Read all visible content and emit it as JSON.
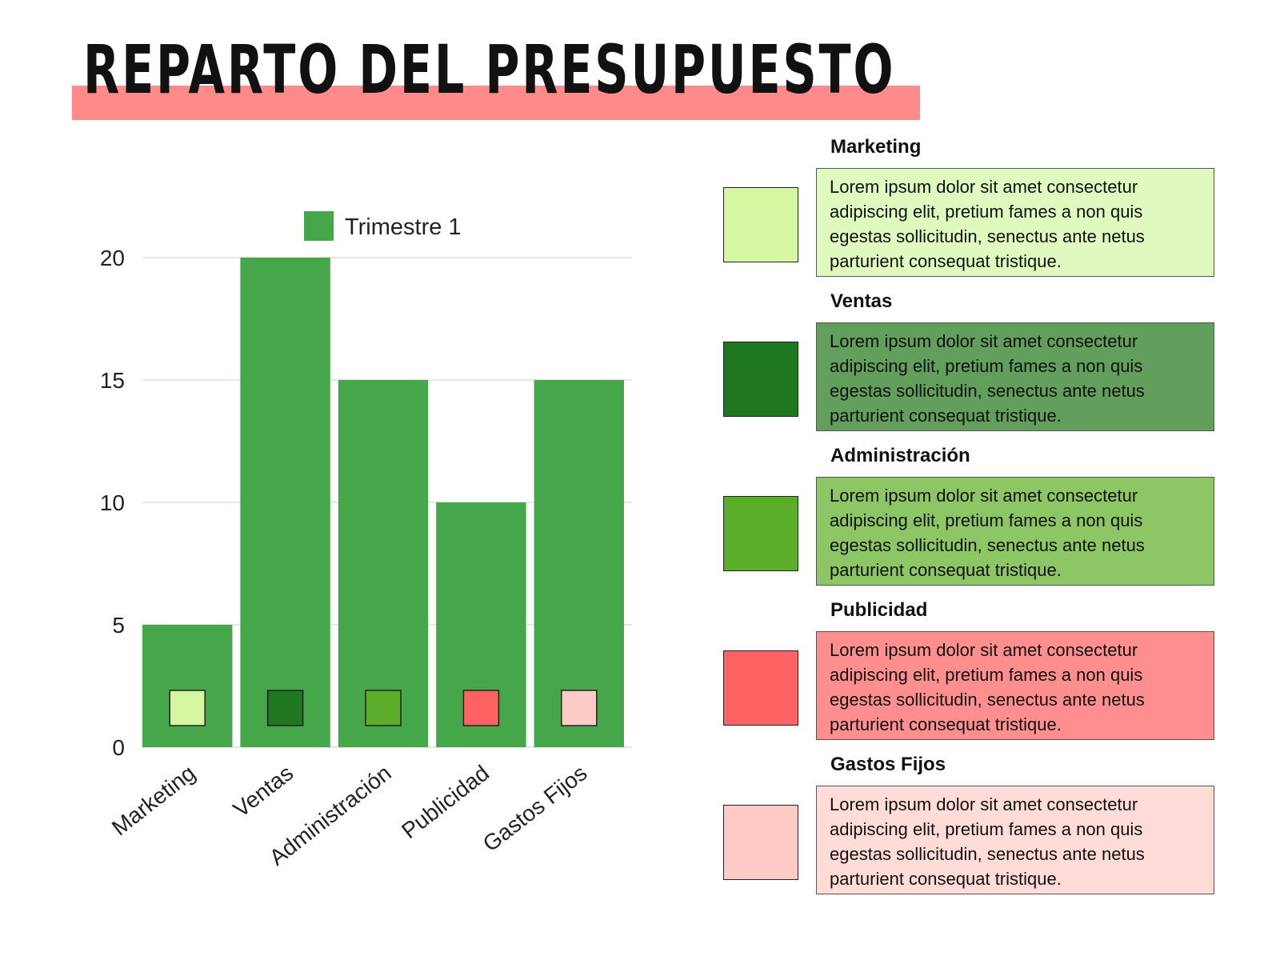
{
  "title": "REPARTO DEL PRESUPUESTO",
  "colors": {
    "title_band": "#ff8a8a",
    "bar": "#46a64a",
    "grid": "#dddddd"
  },
  "chart_data": {
    "type": "bar",
    "categories": [
      "Marketing",
      "Ventas",
      "Administración",
      "Publicidad",
      "Gastos Fijos"
    ],
    "series": [
      {
        "name": "Trimestre 1",
        "values": [
          5,
          20,
          15,
          10,
          15
        ]
      }
    ],
    "marker_colors": [
      "#d4f7a0",
      "#1f7720",
      "#5aae2a",
      "#ff6262",
      "#ffcbc6"
    ],
    "yticks": [
      0,
      5,
      10,
      15,
      20
    ],
    "ylim": [
      0,
      20
    ],
    "grid": true,
    "legend_position": "top"
  },
  "legend": [
    {
      "title": "Marketing",
      "text": "Lorem ipsum dolor sit amet consectetur adipiscing elit, pretium fames a non quis egestas sollicitudin, senectus ante netus parturient consequat tristique.",
      "swatch_color": "#d4f7a0",
      "box_color": "#dff9bf"
    },
    {
      "title": "Ventas",
      "text": "Lorem ipsum dolor sit amet consectetur adipiscing elit, pretium fames a non quis egestas sollicitudin, senectus ante netus parturient consequat tristique.",
      "swatch_color": "#1f7720",
      "box_color": "#629e5c"
    },
    {
      "title": "Administración",
      "text": "Lorem ipsum dolor sit amet consectetur adipiscing elit, pretium fames a non quis egestas sollicitudin, senectus ante netus parturient consequat tristique.",
      "swatch_color": "#5aae2a",
      "box_color": "#8cc665"
    },
    {
      "title": "Publicidad",
      "text": "Lorem ipsum dolor sit amet consectetur adipiscing elit, pretium fames a non quis egestas sollicitudin, senectus ante netus parturient consequat tristique.",
      "swatch_color": "#ff6262",
      "box_color": "#ff8f8f"
    },
    {
      "title": "Gastos Fijos",
      "text": "Lorem ipsum dolor sit amet consectetur adipiscing elit, pretium fames a non quis egestas sollicitudin, senectus ante netus parturient consequat tristique.",
      "swatch_color": "#ffcbc6",
      "box_color": "#ffdcd8"
    }
  ]
}
